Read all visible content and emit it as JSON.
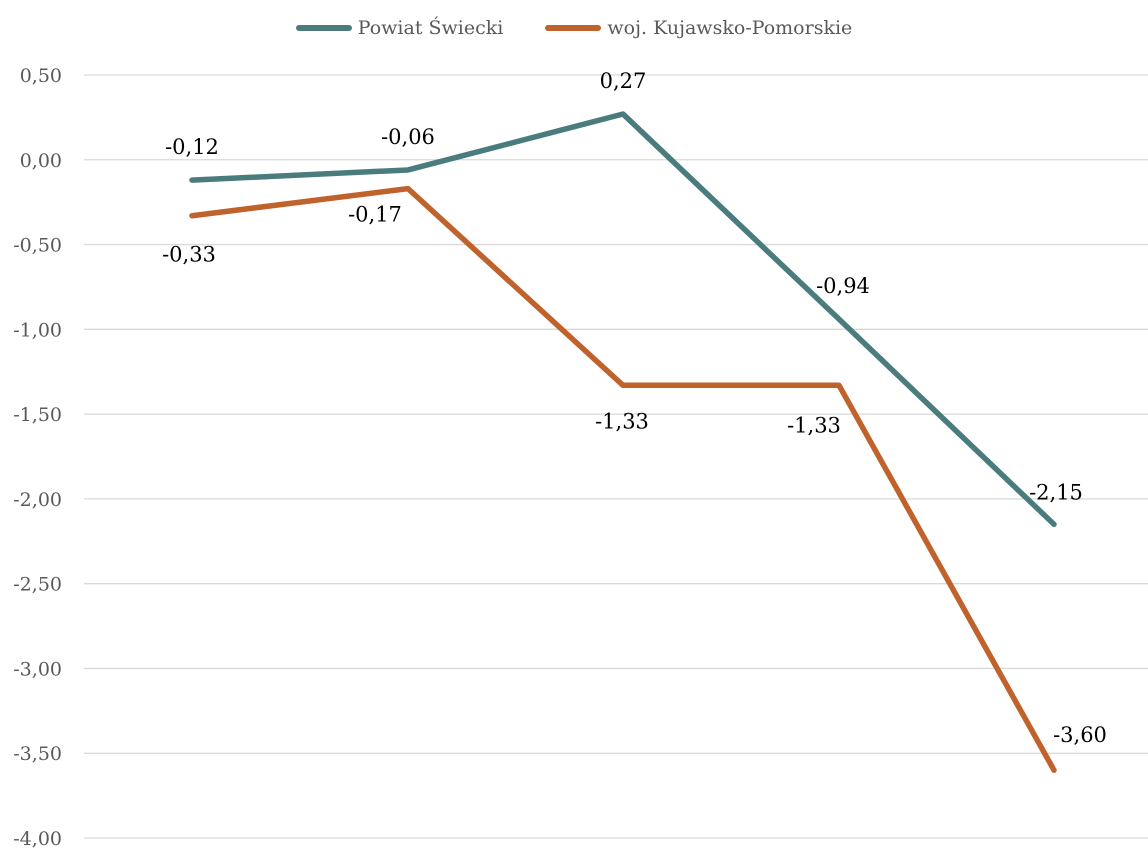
{
  "chart_data": {
    "type": "line",
    "categories": [
      "",
      "",
      "",
      "",
      ""
    ],
    "ylim": [
      -4,
      0.5
    ],
    "yticks": [
      "0,50",
      "0,00",
      "-0,50",
      "-1,00",
      "-1,50",
      "-2,00",
      "-2,50",
      "-3,00",
      "-3,50",
      "-4,00"
    ],
    "ytick_values": [
      0.5,
      0,
      -0.5,
      -1,
      -1.5,
      -2,
      -2.5,
      -3,
      -3.5,
      -4
    ],
    "grid": true,
    "legend_position": "top-center",
    "series": [
      {
        "name": "Powiat Świecki",
        "color": "#4a7c7e",
        "values": [
          -0.12,
          -0.06,
          0.27,
          -0.94,
          -2.15
        ],
        "labels": [
          "-0,12",
          "-0,06",
          "0,27",
          "-0,94",
          "-2,15"
        ]
      },
      {
        "name": "woj. Kujawsko-Pomorskie",
        "color": "#c0622b",
        "values": [
          -0.33,
          -0.17,
          -1.33,
          -1.33,
          -3.6
        ],
        "labels": [
          "-0,33",
          "-0,17",
          "-1,33",
          "-1,33",
          "-3,60"
        ]
      }
    ]
  }
}
